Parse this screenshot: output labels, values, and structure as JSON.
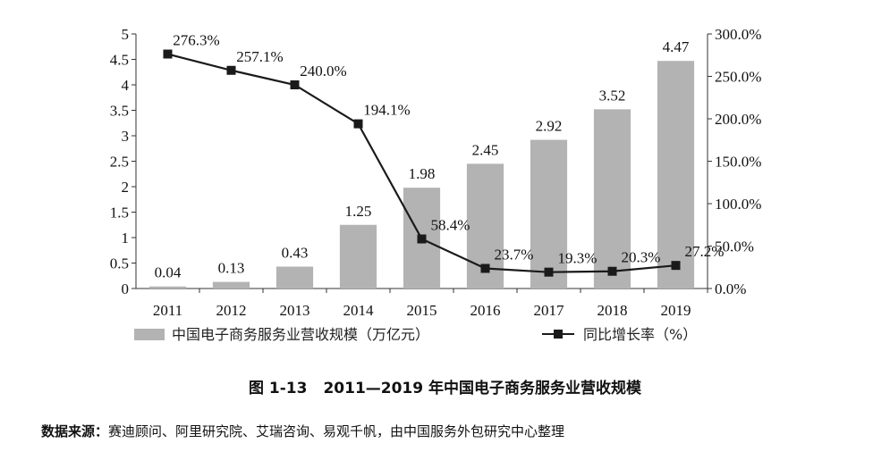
{
  "chart_data": {
    "type": "bar",
    "title": "2011—2019 年中国电子商务服务业营收规模",
    "figure_number": "图 1-13",
    "categories": [
      "2011",
      "2012",
      "2013",
      "2014",
      "2015",
      "2016",
      "2017",
      "2018",
      "2019"
    ],
    "series": [
      {
        "name": "中国电子商务服务业营收规模（万亿元）",
        "type": "bar",
        "axis": "left",
        "values": [
          0.04,
          0.13,
          0.43,
          1.25,
          1.98,
          2.45,
          2.92,
          3.52,
          4.47
        ],
        "labels": [
          "0.04",
          "0.13",
          "0.43",
          "1.25",
          "1.98",
          "2.45",
          "2.92",
          "3.52",
          "4.47"
        ],
        "color": "#b3b3b3"
      },
      {
        "name": "同比增长率（%）",
        "type": "line",
        "axis": "right",
        "values": [
          276.3,
          257.1,
          240.0,
          194.1,
          58.4,
          23.7,
          19.3,
          20.3,
          27.2
        ],
        "labels": [
          "276.3%",
          "257.1%",
          "240.0%",
          "194.1%",
          "58.4%",
          "23.7%",
          "19.3%",
          "20.3%",
          "27.2%"
        ],
        "color": "#1a1a1a"
      }
    ],
    "y_left": {
      "min": 0,
      "max": 5,
      "ticks": [
        "0",
        "0.5",
        "1",
        "1.5",
        "2",
        "2.5",
        "3",
        "3.5",
        "4",
        "4.5",
        "5"
      ]
    },
    "y_right": {
      "min": 0,
      "max": 300,
      "ticks": [
        "0.0%",
        "50.0%",
        "100.0%",
        "150.0%",
        "200.0%",
        "250.0%",
        "300.0%"
      ]
    },
    "legend_position": "bottom"
  },
  "source": {
    "label": "数据来源：",
    "text": "赛迪顾问、阿里研究院、艾瑞咨询、易观千帆，由中国服务外包研究中心整理"
  }
}
